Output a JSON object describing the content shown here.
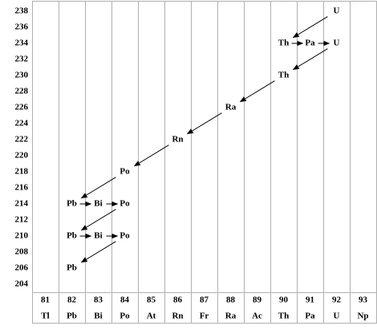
{
  "y_axis": {
    "ticks": [
      238,
      236,
      234,
      232,
      230,
      228,
      226,
      224,
      222,
      220,
      218,
      216,
      214,
      212,
      210,
      208,
      206,
      204
    ]
  },
  "columns": [
    {
      "z": 81,
      "symbol": "Tl"
    },
    {
      "z": 82,
      "symbol": "Pb"
    },
    {
      "z": 83,
      "symbol": "Bi"
    },
    {
      "z": 84,
      "symbol": "Po"
    },
    {
      "z": 85,
      "symbol": "At"
    },
    {
      "z": 86,
      "symbol": "Rn"
    },
    {
      "z": 87,
      "symbol": "Fr"
    },
    {
      "z": 88,
      "symbol": "Ra"
    },
    {
      "z": 89,
      "symbol": "Ac"
    },
    {
      "z": 90,
      "symbol": "Th"
    },
    {
      "z": 91,
      "symbol": "Pa"
    },
    {
      "z": 92,
      "symbol": "U"
    },
    {
      "z": 93,
      "symbol": "Np"
    }
  ],
  "nodes": [
    {
      "symbol": "U",
      "z": 92,
      "a": 238
    },
    {
      "symbol": "Th",
      "z": 90,
      "a": 234
    },
    {
      "symbol": "Pa",
      "z": 91,
      "a": 234
    },
    {
      "symbol": "U",
      "z": 92,
      "a": 234
    },
    {
      "symbol": "Th",
      "z": 90,
      "a": 230
    },
    {
      "symbol": "Ra",
      "z": 88,
      "a": 226
    },
    {
      "symbol": "Rn",
      "z": 86,
      "a": 222
    },
    {
      "symbol": "Po",
      "z": 84,
      "a": 218
    },
    {
      "symbol": "Pb",
      "z": 82,
      "a": 214
    },
    {
      "symbol": "Bi",
      "z": 83,
      "a": 214
    },
    {
      "symbol": "Po",
      "z": 84,
      "a": 214
    },
    {
      "symbol": "Pb",
      "z": 82,
      "a": 210
    },
    {
      "symbol": "Bi",
      "z": 83,
      "a": 210
    },
    {
      "symbol": "Po",
      "z": 84,
      "a": 210
    },
    {
      "symbol": "Pb",
      "z": 82,
      "a": 206
    }
  ]
}
